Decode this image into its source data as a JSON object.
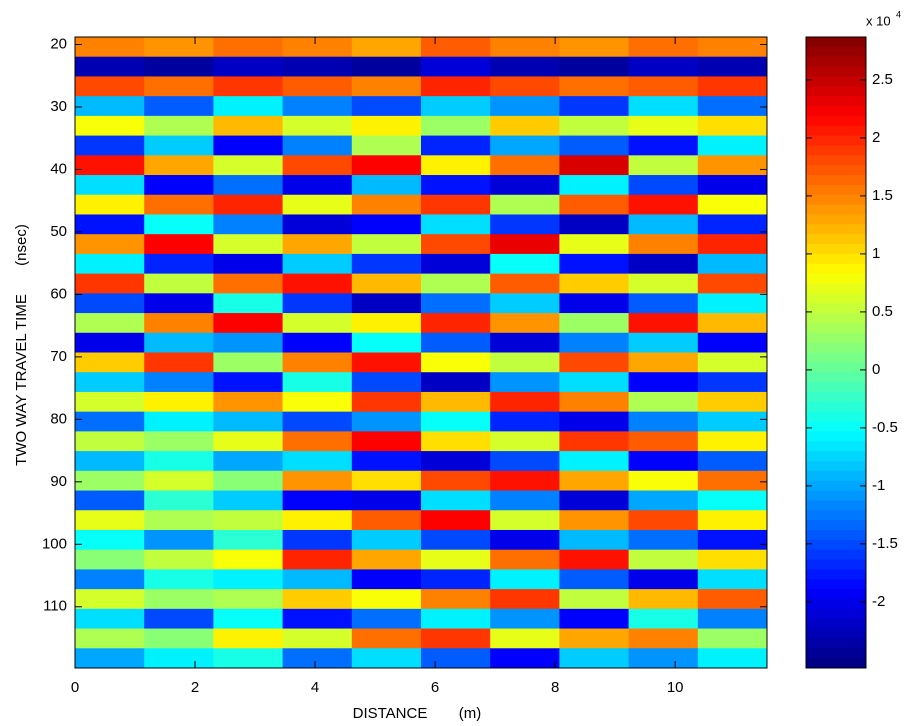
{
  "chart_data": {
    "type": "heatmap",
    "x_label": "DISTANCE",
    "x_unit": "(m)",
    "y_label": "TWO WAY TRAVEL TIME",
    "y_unit": "(nsec)",
    "colorbar_multiplier": "x 10",
    "colorbar_exponent": "4",
    "colormap": "jet",
    "xlim": [
      0,
      11.53
    ],
    "xticks": [
      0,
      2,
      4,
      6,
      8,
      10
    ],
    "ylim": [
      18.8,
      119.8
    ],
    "yticks": [
      20,
      30,
      40,
      50,
      60,
      70,
      80,
      90,
      100,
      110
    ],
    "y_reversed": true,
    "clim": [
      -2.57,
      2.87
    ],
    "cticks": [
      -2,
      -1.5,
      -1,
      -0.5,
      0,
      0.5,
      1,
      1.5,
      2,
      2.5
    ],
    "z": [
      [
        1.5,
        1.4,
        1.6,
        1.5,
        1.3,
        1.7,
        1.5,
        1.4,
        1.6,
        1.5
      ],
      [
        -2.3,
        -2.4,
        -2.2,
        -2.3,
        -2.4,
        -2.1,
        -2.3,
        -2.4,
        -2.2,
        -2.3
      ],
      [
        1.8,
        1.6,
        1.9,
        1.7,
        1.5,
        2.0,
        1.8,
        1.6,
        1.7,
        1.9
      ],
      [
        -0.9,
        -1.4,
        -0.6,
        -1.2,
        -1.5,
        -0.8,
        -1.1,
        -1.6,
        -0.7,
        -1.3
      ],
      [
        0.8,
        0.4,
        1.2,
        0.6,
        0.9,
        0.3,
        1.1,
        0.5,
        0.7,
        1.0
      ],
      [
        -1.6,
        -0.8,
        -1.9,
        -1.2,
        0.4,
        -1.7,
        -1.0,
        -1.4,
        -1.8,
        -0.6
      ],
      [
        2.1,
        1.3,
        0.6,
        1.8,
        2.2,
        0.9,
        1.6,
        2.4,
        0.5,
        1.4
      ],
      [
        -0.7,
        -1.9,
        -1.3,
        -2.0,
        -0.9,
        -1.8,
        -2.1,
        -0.6,
        -1.5,
        -2.0
      ],
      [
        0.9,
        1.6,
        2.0,
        0.7,
        1.5,
        1.9,
        0.4,
        1.7,
        2.1,
        0.8
      ],
      [
        -1.8,
        -0.5,
        -1.2,
        -2.1,
        -1.9,
        -0.7,
        -1.6,
        -2.2,
        -0.9,
        -1.7
      ],
      [
        1.4,
        2.2,
        0.6,
        1.3,
        0.5,
        1.8,
        2.3,
        0.7,
        1.5,
        2.0
      ],
      [
        -0.6,
        -1.7,
        -2.0,
        -0.8,
        -1.6,
        -2.1,
        -0.5,
        -1.8,
        -2.2,
        -0.9
      ],
      [
        1.9,
        0.5,
        1.6,
        2.1,
        1.2,
        0.4,
        1.7,
        1.1,
        0.6,
        1.8
      ],
      [
        -1.5,
        -2.0,
        -0.4,
        -1.6,
        -2.2,
        -1.3,
        -0.8,
        -2.0,
        -1.4,
        -0.6
      ],
      [
        0.4,
        1.5,
        2.2,
        0.6,
        0.9,
        2.0,
        1.4,
        0.3,
        2.1,
        1.2
      ],
      [
        -2.0,
        -0.9,
        -1.1,
        -1.9,
        -0.5,
        -1.4,
        -2.1,
        -1.2,
        -0.8,
        -1.9
      ],
      [
        1.1,
        1.9,
        0.3,
        1.5,
        2.1,
        0.8,
        0.5,
        1.8,
        1.3,
        0.6
      ],
      [
        -0.8,
        -1.2,
        -1.8,
        -0.4,
        -1.5,
        -2.2,
        -1.1,
        -0.7,
        -1.9,
        -1.6
      ],
      [
        0.6,
        0.9,
        1.4,
        0.8,
        1.9,
        1.2,
        2.0,
        1.5,
        0.4,
        1.1
      ],
      [
        -1.3,
        -0.6,
        -0.9,
        -1.5,
        -1.1,
        -0.5,
        -1.7,
        -2.0,
        -1.2,
        -0.8
      ],
      [
        0.5,
        0.3,
        0.7,
        1.6,
        2.2,
        1.0,
        0.6,
        1.9,
        1.7,
        0.9
      ],
      [
        -0.9,
        -0.4,
        -1.0,
        -0.7,
        -1.8,
        -2.1,
        -1.5,
        -0.6,
        -1.9,
        -1.4
      ],
      [
        0.3,
        0.6,
        0.2,
        1.4,
        1.0,
        1.8,
        2.1,
        1.3,
        0.8,
        1.6
      ],
      [
        -1.4,
        -0.3,
        -0.8,
        -1.9,
        -2.0,
        -0.7,
        -1.2,
        -2.1,
        -1.0,
        -0.5
      ],
      [
        0.7,
        0.4,
        0.5,
        0.9,
        1.7,
        2.2,
        0.6,
        1.4,
        1.8,
        0.9
      ],
      [
        -0.5,
        -1.1,
        -0.3,
        -1.6,
        -0.8,
        -1.5,
        -2.0,
        -0.9,
        -1.3,
        -1.8
      ],
      [
        0.2,
        0.5,
        0.8,
        2.0,
        1.3,
        0.7,
        1.6,
        2.1,
        0.5,
        1.0
      ],
      [
        -1.2,
        -0.4,
        -0.6,
        -0.9,
        -1.9,
        -1.7,
        -0.6,
        -1.4,
        -2.0,
        -0.7
      ],
      [
        0.6,
        0.3,
        0.4,
        1.1,
        0.8,
        1.5,
        1.9,
        0.5,
        1.2,
        1.7
      ],
      [
        -0.7,
        -1.5,
        -0.5,
        -1.8,
        -1.3,
        -0.6,
        -1.1,
        -1.9,
        -0.4,
        -1.2
      ],
      [
        0.4,
        0.2,
        0.9,
        0.6,
        1.6,
        1.9,
        0.7,
        1.3,
        1.5,
        0.3
      ],
      [
        -1.0,
        -0.6,
        -0.4,
        -1.3,
        -0.7,
        -1.4,
        -1.9,
        -0.8,
        -1.1,
        -0.6
      ]
    ]
  }
}
